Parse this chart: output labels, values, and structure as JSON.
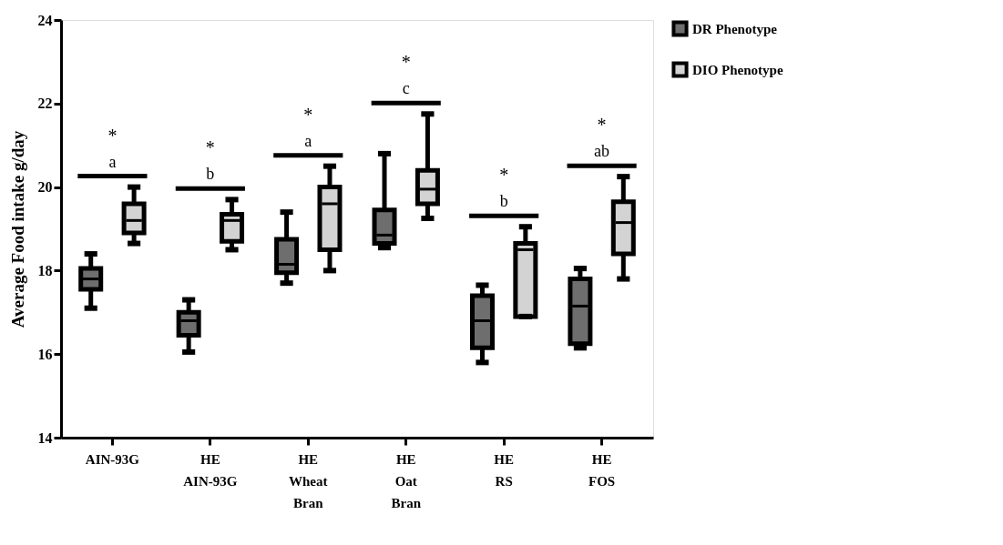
{
  "chart_data": {
    "type": "box",
    "ylabel": "Average Food intake g/day",
    "categories": [
      "AIN-93G",
      "HE\nAIN-93G",
      "HE\nWheat\nBran",
      "HE\nOat\nBran",
      "HE\nRS",
      "HE\nFOS"
    ],
    "series": [
      {
        "name": "DR Phenotype",
        "color": "#6e6e6e",
        "boxes": [
          {
            "low": 17.1,
            "q1": 17.55,
            "median": 17.8,
            "q3": 18.05,
            "high": 18.4
          },
          {
            "low": 16.05,
            "q1": 16.45,
            "median": 16.8,
            "q3": 17.0,
            "high": 17.3
          },
          {
            "low": 17.7,
            "q1": 17.95,
            "median": 18.15,
            "q3": 18.75,
            "high": 19.4
          },
          {
            "low": 18.55,
            "q1": 18.65,
            "median": 18.85,
            "q3": 19.45,
            "high": 20.8
          },
          {
            "low": 15.8,
            "q1": 16.15,
            "median": 16.8,
            "q3": 17.4,
            "high": 17.65
          },
          {
            "low": 16.15,
            "q1": 16.25,
            "median": 17.15,
            "q3": 17.8,
            "high": 18.05
          }
        ]
      },
      {
        "name": "DIO Phenotype",
        "color": "#d3d3d3",
        "boxes": [
          {
            "low": 18.65,
            "q1": 18.9,
            "median": 19.2,
            "q3": 19.6,
            "high": 20.0
          },
          {
            "low": 18.5,
            "q1": 18.7,
            "median": 19.2,
            "q3": 19.35,
            "high": 19.7
          },
          {
            "low": 18.0,
            "q1": 18.5,
            "median": 19.6,
            "q3": 20.0,
            "high": 20.5
          },
          {
            "low": 19.25,
            "q1": 19.6,
            "median": 19.95,
            "q3": 20.4,
            "high": 21.75
          },
          {
            "low": 16.9,
            "q1": 16.9,
            "median": 18.5,
            "q3": 18.65,
            "high": 19.05
          },
          {
            "low": 17.8,
            "q1": 18.4,
            "median": 19.15,
            "q3": 19.65,
            "high": 20.25
          }
        ]
      }
    ],
    "ylim": [
      14,
      24
    ],
    "yticks": [
      14,
      16,
      18,
      20,
      22,
      24
    ],
    "grid": false,
    "legend": "top right",
    "annotations": [
      "*",
      "a",
      "*",
      "b",
      "*",
      "a",
      "*",
      "c",
      "*",
      "b",
      "*",
      "ab"
    ]
  }
}
